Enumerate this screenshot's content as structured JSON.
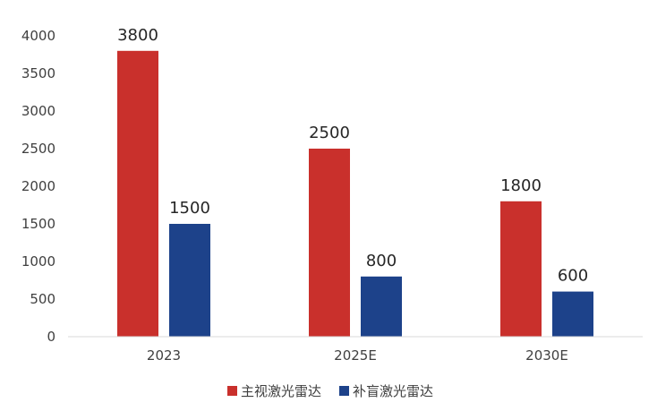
{
  "chart_data": {
    "type": "bar",
    "categories": [
      "2023",
      "2025E",
      "2030E"
    ],
    "series": [
      {
        "name": "主视激光雷达",
        "color": "#c9302c",
        "values": [
          3800,
          2500,
          1800
        ]
      },
      {
        "name": "补盲激光雷达",
        "color": "#1d428a",
        "values": [
          1500,
          800,
          600
        ]
      }
    ],
    "yticks": [
      "0",
      "500",
      "1000",
      "1500",
      "2000",
      "2500",
      "3000",
      "3500",
      "4000"
    ],
    "ylim": [
      0,
      4000
    ],
    "grid": false,
    "legend_position": "bottom"
  }
}
